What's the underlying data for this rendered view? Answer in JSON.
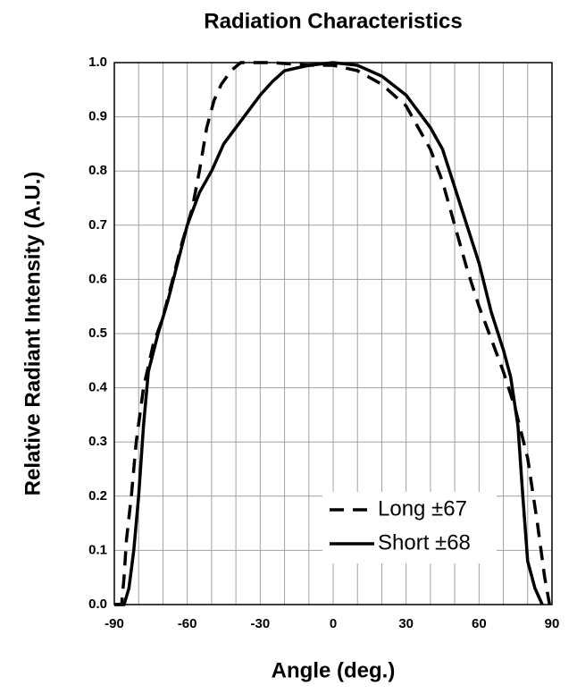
{
  "chart_data": {
    "type": "line",
    "title": "Radiation Characteristics",
    "x_label": "Angle (deg.)",
    "y_label": "Relative Radiant Intensity (A.U.)",
    "xlim": [
      -90,
      90
    ],
    "xticks": [
      -90,
      -60,
      -30,
      0,
      30,
      60,
      90
    ],
    "x_minor_ticks": [
      -80,
      -70,
      -50,
      -40,
      -20,
      -10,
      10,
      20,
      40,
      50,
      70,
      80
    ],
    "ylim": [
      0,
      1
    ],
    "yticks": [
      {
        "value": 0,
        "label": "0.0"
      },
      0.1,
      0.2,
      0.3,
      0.4,
      0.5,
      0.6,
      0.7,
      0.8,
      0.9,
      {
        "value": 1,
        "label": "1.0"
      }
    ],
    "grid": true,
    "legend": "lower right",
    "series": [
      {
        "name": "Long ±67",
        "color": "#000000",
        "dash": "dashed",
        "x": [
          -90,
          -87,
          -86,
          -85,
          -83,
          -81,
          -78,
          -74,
          -70,
          -66,
          -62,
          -58,
          -55,
          -52,
          -49,
          -46,
          -42,
          -38,
          -25,
          -10,
          0,
          10,
          20,
          30,
          40,
          45,
          50,
          55,
          60,
          65,
          70,
          75,
          80,
          84,
          87,
          89
        ],
        "values": [
          0,
          0,
          0.05,
          0.12,
          0.2,
          0.3,
          0.4,
          0.48,
          0.53,
          0.6,
          0.67,
          0.73,
          0.8,
          0.88,
          0.93,
          0.96,
          0.985,
          1.0,
          1.0,
          0.995,
          0.995,
          0.985,
          0.96,
          0.92,
          0.84,
          0.78,
          0.7,
          0.62,
          0.55,
          0.49,
          0.43,
          0.36,
          0.27,
          0.15,
          0.05,
          0
        ]
      },
      {
        "name": "Short ±68",
        "color": "#000000",
        "dash": "solid",
        "x": [
          -90,
          -86,
          -84,
          -82,
          -80,
          -78,
          -76,
          -72,
          -68,
          -64,
          -60,
          -55,
          -50,
          -45,
          -40,
          -35,
          -30,
          -25,
          -20,
          -10,
          0,
          10,
          20,
          30,
          40,
          45,
          50,
          55,
          60,
          65,
          70,
          73,
          76,
          78,
          80,
          83,
          86
        ],
        "values": [
          0,
          0,
          0.03,
          0.1,
          0.2,
          0.33,
          0.43,
          0.5,
          0.56,
          0.63,
          0.7,
          0.76,
          0.8,
          0.85,
          0.88,
          0.91,
          0.94,
          0.965,
          0.985,
          0.995,
          1.0,
          0.995,
          0.975,
          0.94,
          0.88,
          0.84,
          0.77,
          0.7,
          0.63,
          0.54,
          0.47,
          0.42,
          0.33,
          0.2,
          0.08,
          0.03,
          0
        ]
      }
    ]
  }
}
